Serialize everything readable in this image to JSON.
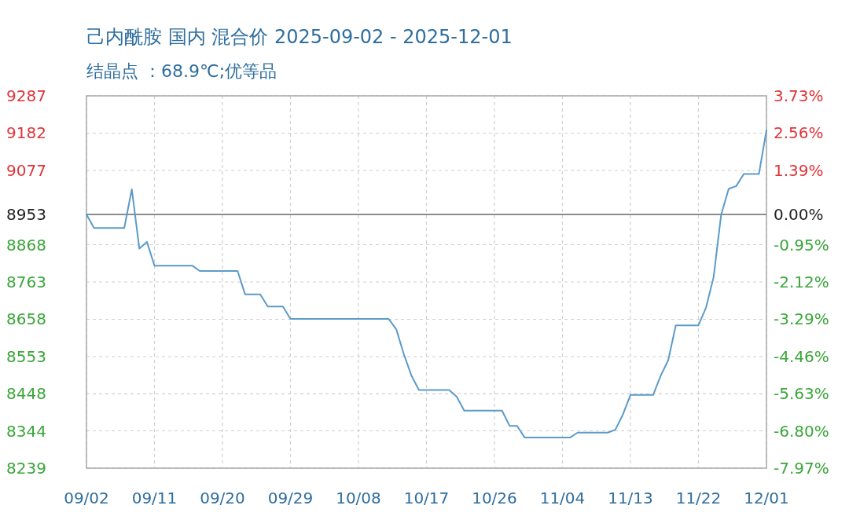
{
  "chart_data": {
    "type": "line",
    "title": "己内酰胺 国内 混合价 2025-09-02 - 2025-12-01",
    "subtitle": "结晶点 ：68.9℃;优等品",
    "x": [
      "--09-02",
      "--09-03",
      "--09-07",
      "--09-08",
      "--09-09",
      "--09-10",
      "--09-11",
      "--09-16",
      "--09-17",
      "--09-22",
      "--09-23",
      "--09-25",
      "--09-26",
      "--09-28",
      "--09-29",
      "--10-12",
      "--10-13",
      "--10-14",
      "--10-15",
      "--10-16",
      "--10-20",
      "--10-21",
      "--10-22",
      "--10-27",
      "--10-28",
      "--10-29",
      "--10-30",
      "--11-05",
      "--11-06",
      "--11-10",
      "--11-11",
      "--11-12",
      "--11-13",
      "--11-16",
      "--11-17",
      "--11-18",
      "--11-19",
      "--11-22",
      "--11-23",
      "--11-24",
      "--11-25",
      "--11-26",
      "--11-27",
      "--11-28",
      "--11-30",
      "--12-01"
    ],
    "series": [
      {
        "color": "#5b9bc8",
        "values": [
          8953,
          8915,
          8915,
          9024,
          8857,
          8876,
          8809,
          8809,
          8794,
          8794,
          8728,
          8728,
          8694,
          8694,
          8659,
          8659,
          8630,
          8560,
          8500,
          8459,
          8459,
          8440,
          8401,
          8401,
          8358,
          8358,
          8325,
          8325,
          8339,
          8339,
          8347,
          8390,
          8445,
          8445,
          8499,
          8543,
          8641,
          8641,
          8691,
          8776,
          8952,
          9025,
          9033,
          9067,
          9067,
          9190
        ]
      }
    ],
    "xlim": [
      "--09-02",
      "--12-01"
    ],
    "xticks": [
      {
        "value": "--09-02",
        "label": "09/02"
      },
      {
        "value": "--09-11",
        "label": "09/11"
      },
      {
        "value": "--09-20",
        "label": "09/20"
      },
      {
        "value": "--09-29",
        "label": "09/29"
      },
      {
        "value": "--10-08",
        "label": "10/08"
      },
      {
        "value": "--10-17",
        "label": "10/17"
      },
      {
        "value": "--10-26",
        "label": "10/26"
      },
      {
        "value": "--11-04",
        "label": "11/04"
      },
      {
        "value": "--11-13",
        "label": "11/13"
      },
      {
        "value": "--11-22",
        "label": "11/22"
      },
      {
        "value": "--12-01",
        "label": "12/01"
      }
    ],
    "ylim": [
      8239,
      9287
    ],
    "yticks": [
      8239,
      8344,
      8448,
      8553,
      8658,
      8763,
      8868,
      8953,
      9077,
      9182,
      9287
    ],
    "y2lim": [
      -7.97,
      3.73
    ],
    "y2ticks": [
      {
        "value": -7.97,
        "label": "-7.97%"
      },
      {
        "value": -6.8,
        "label": "-6.80%"
      },
      {
        "value": -5.63,
        "label": "-5.63%"
      },
      {
        "value": -4.46,
        "label": "-4.46%"
      },
      {
        "value": -3.29,
        "label": "-3.29%"
      },
      {
        "value": -2.12,
        "label": "-2.12%"
      },
      {
        "value": -0.95,
        "label": "-0.95%"
      },
      {
        "value": 0,
        "label": "0.00%"
      },
      {
        "value": 1.39,
        "label": "1.39%"
      },
      {
        "value": 2.56,
        "label": "2.56%"
      },
      {
        "value": 3.73,
        "label": "3.73%"
      }
    ],
    "ref_lines": [
      {
        "axis": "y",
        "value": 8953,
        "color": "#8c8c8c"
      }
    ],
    "grid": true
  }
}
